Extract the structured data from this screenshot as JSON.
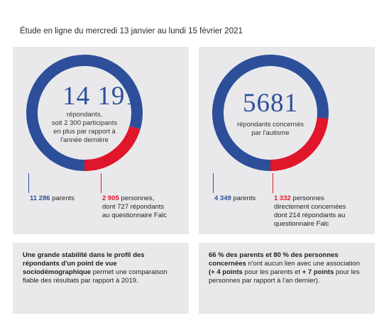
{
  "header": "Étude en ligne du mercredi 13 janvier au lundi 15 février 2021",
  "colors": {
    "blue": "#2d4f9a",
    "red": "#e0162b"
  },
  "chart_data": [
    {
      "type": "pie",
      "total_label": "14 191",
      "subtitle": [
        "répondants,",
        "soit 2 300 participants",
        "en plus par rapport à",
        "l'année dernière"
      ],
      "slices": [
        {
          "label": "parents",
          "value": 11286,
          "value_text": "11 286",
          "color": "#2d4f9a"
        },
        {
          "label": "personnes, dont 727 répondants au questionnaire Falc",
          "value": 2905,
          "value_text": "2 905",
          "color": "#e0162b"
        }
      ],
      "labels": {
        "blue_text": "parents",
        "red_lines": [
          "personnes,",
          "dont 727 répondants",
          "au questionnaire Falc"
        ]
      }
    },
    {
      "type": "pie",
      "total_label": "5681",
      "subtitle": [
        "répondants concernés",
        "par l'autisme"
      ],
      "slices": [
        {
          "label": "parents",
          "value": 4349,
          "value_text": "4 349",
          "color": "#2d4f9a"
        },
        {
          "label": "personnes directement concernées dont 214 répondants au questionnaire Falc",
          "value": 1332,
          "value_text": "1 332",
          "color": "#e0162b"
        }
      ],
      "labels": {
        "blue_text": "parents",
        "red_lines": [
          "personnes",
          "directement concernées",
          "dont 214 répondants au",
          "questionnaire Falc"
        ]
      }
    }
  ],
  "notes": {
    "left": {
      "bold": "Une grande stabilité dans le profil des répondants d'un point de vue sociodémographique",
      "rest": " permet une comparaison fiable des résultats par rapport à 2019."
    },
    "right": {
      "bold1": "66 % des parents et 80 % des personnes concernées",
      "text1": " n'ont aucun lien avec une association ",
      "bold2": "(+ 4 points",
      "text2": " pour les parents et ",
      "bold3": "+ 7 points",
      "text3": " pour les personnes par rapport à l'an dernier)."
    }
  }
}
